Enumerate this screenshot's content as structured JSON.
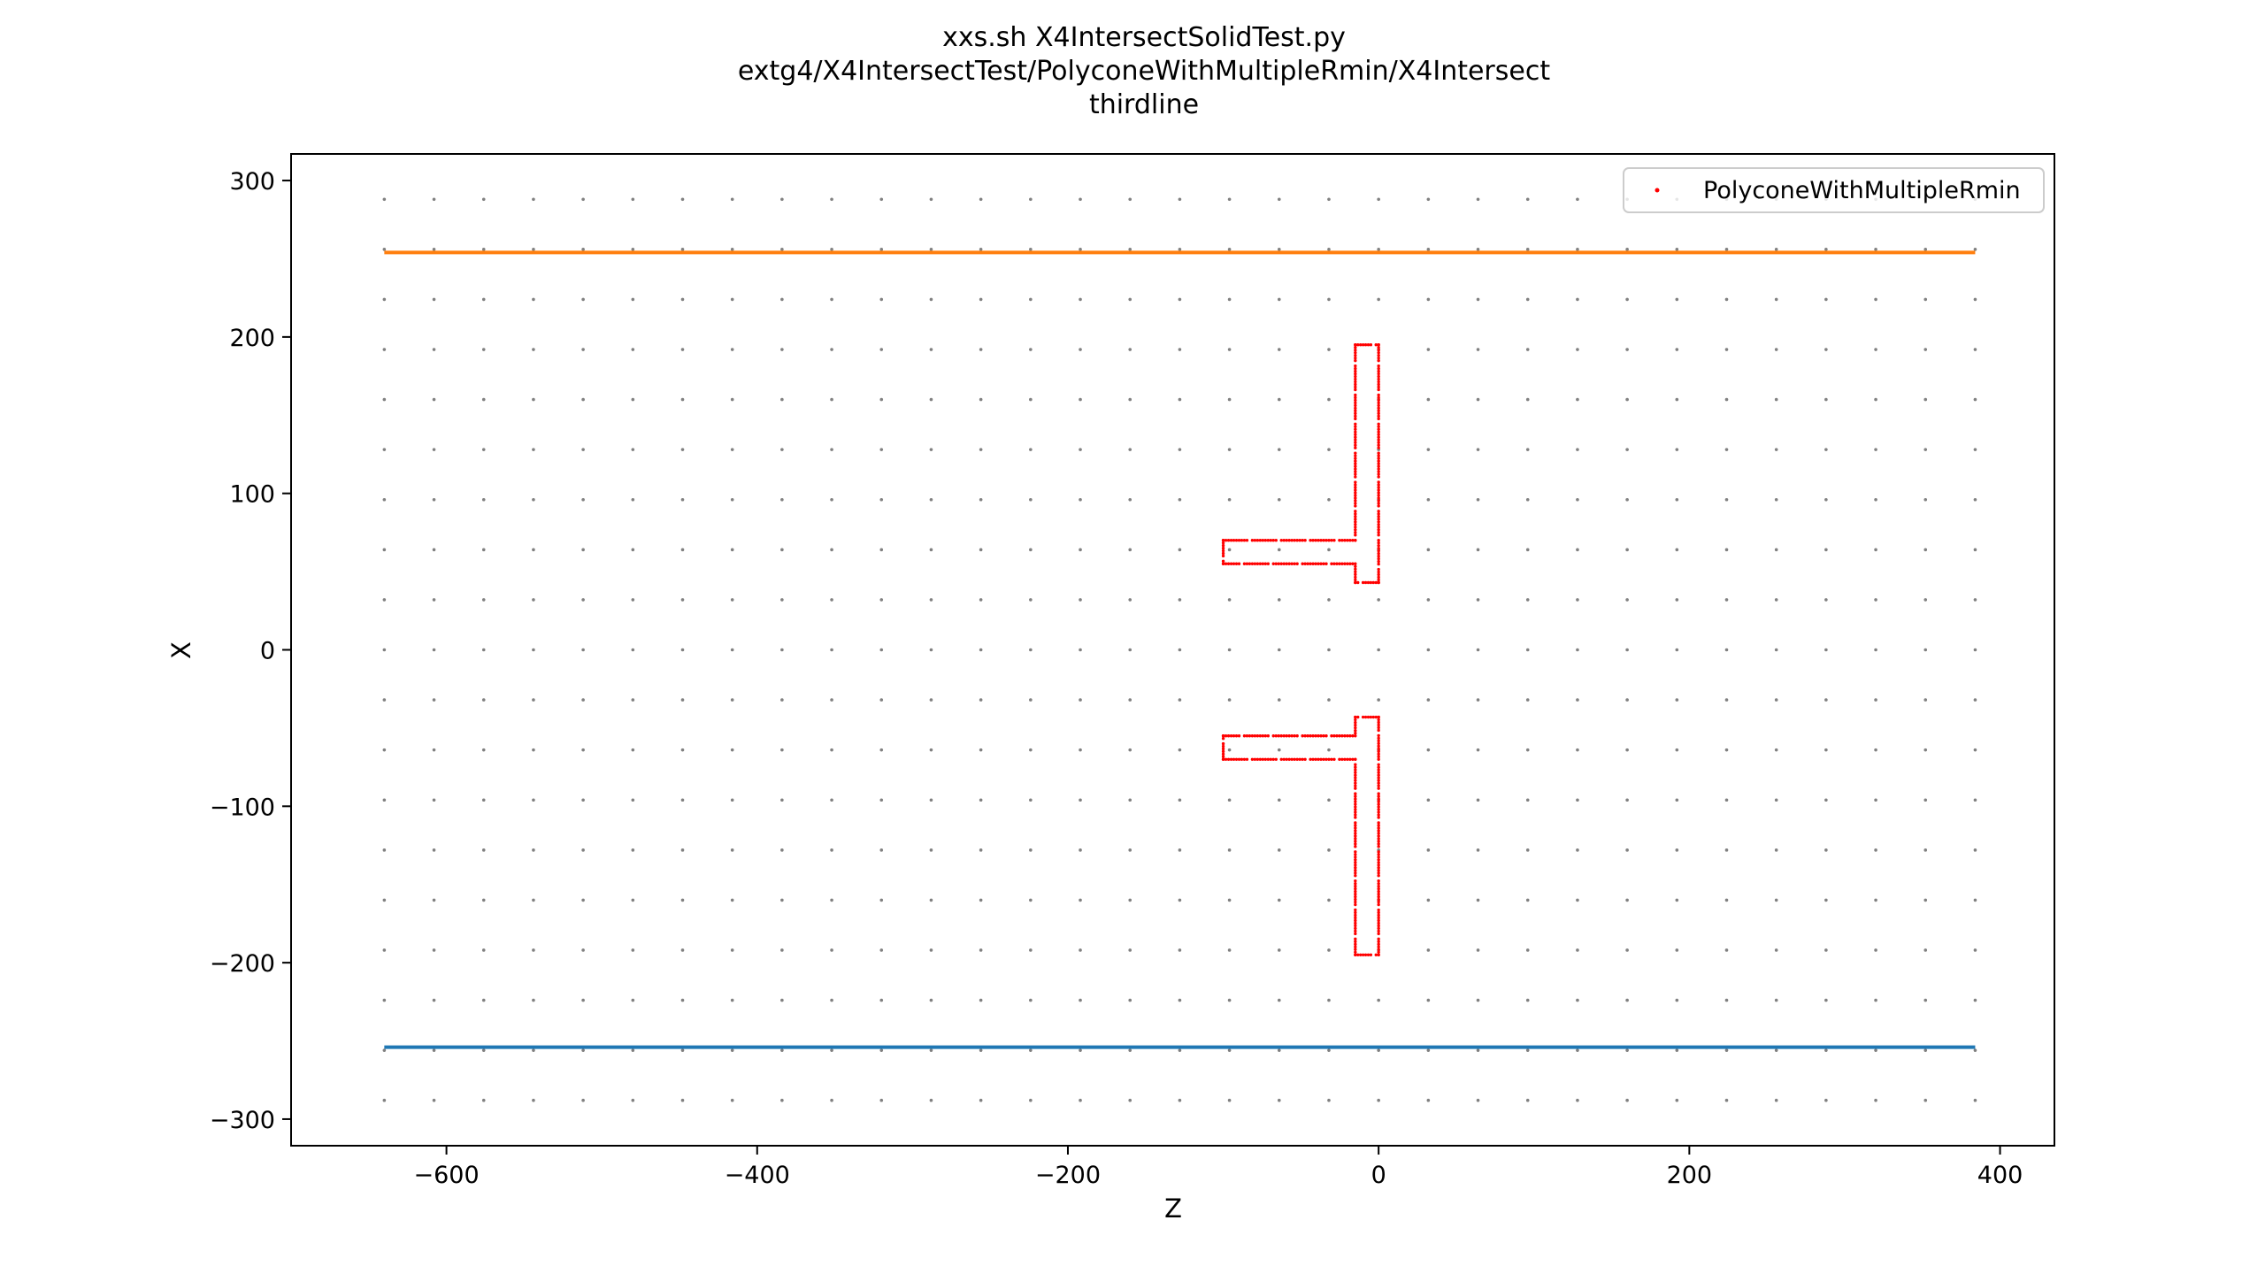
{
  "chart_data": {
    "type": "scatter",
    "title_lines": [
      "xxs.sh X4IntersectSolidTest.py",
      "extg4/X4IntersectTest/PolyconeWithMultipleRmin/X4Intersect",
      "thirdline"
    ],
    "xlabel": "Z",
    "ylabel": "X",
    "xlim": [
      -700,
      435
    ],
    "ylim": [
      -317,
      317
    ],
    "xticks": [
      -600,
      -400,
      -200,
      0,
      200,
      400
    ],
    "yticks": [
      -300,
      -200,
      -100,
      0,
      100,
      200,
      300
    ],
    "xtick_labels": [
      "−600",
      "−400",
      "−200",
      "0",
      "200",
      "400"
    ],
    "ytick_labels": [
      "−300",
      "−200",
      "−100",
      "0",
      "100",
      "200",
      "300"
    ],
    "grid": false,
    "legend": {
      "position": "top-right",
      "entries": [
        {
          "label": "PolyconeWithMultipleRmin",
          "color": "#ff0000",
          "marker": "dot"
        }
      ]
    },
    "gensteps": {
      "color": "#808080",
      "x_range": [
        -640,
        384
      ],
      "x_step": 32,
      "y_range": [
        -288,
        288
      ],
      "y_step": 32
    },
    "series": [
      {
        "kind": "line",
        "color": "#ff7f0e",
        "x": [
          -640,
          384
        ],
        "y": [
          254,
          254
        ]
      },
      {
        "kind": "line",
        "color": "#1f77b4",
        "x": [
          -640,
          384
        ],
        "y": [
          -254,
          -254
        ]
      },
      {
        "kind": "scatter",
        "color": "#ff0000",
        "segments": [
          {
            "x": [
              -15,
              0
            ],
            "y": [
              195,
              195
            ]
          },
          {
            "x": [
              -15,
              -15
            ],
            "y": [
              195,
              70
            ]
          },
          {
            "x": [
              0,
              0
            ],
            "y": [
              195,
              43
            ]
          },
          {
            "x": [
              0,
              -15
            ],
            "y": [
              43,
              43
            ]
          },
          {
            "x": [
              -15,
              -15
            ],
            "y": [
              43,
              55
            ]
          },
          {
            "x": [
              -15,
              -100
            ],
            "y": [
              70,
              70
            ]
          },
          {
            "x": [
              -100,
              -100
            ],
            "y": [
              70,
              55
            ]
          },
          {
            "x": [
              -100,
              -15
            ],
            "y": [
              55,
              55
            ]
          },
          {
            "x": [
              -15,
              0
            ],
            "y": [
              -195,
              -195
            ]
          },
          {
            "x": [
              -15,
              -15
            ],
            "y": [
              -195,
              -70
            ]
          },
          {
            "x": [
              0,
              0
            ],
            "y": [
              -195,
              -43
            ]
          },
          {
            "x": [
              0,
              -15
            ],
            "y": [
              -43,
              -43
            ]
          },
          {
            "x": [
              -15,
              -15
            ],
            "y": [
              -43,
              -55
            ]
          },
          {
            "x": [
              -15,
              -100
            ],
            "y": [
              -70,
              -70
            ]
          },
          {
            "x": [
              -100,
              -100
            ],
            "y": [
              -70,
              -55
            ]
          },
          {
            "x": [
              -100,
              -15
            ],
            "y": [
              -55,
              -55
            ]
          }
        ]
      }
    ]
  }
}
